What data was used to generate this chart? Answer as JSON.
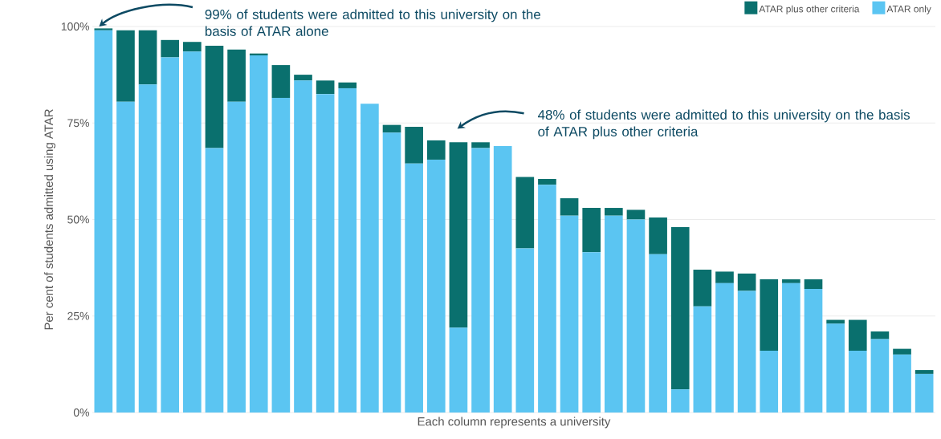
{
  "chart_data": {
    "type": "bar",
    "stacked": true,
    "ylabel": "Per cent of students admitted using ATAR",
    "xlabel": "Each column represents a university",
    "categories": [
      null,
      null,
      null,
      null,
      null,
      null,
      null,
      null,
      null,
      null,
      null,
      null,
      null,
      null,
      null,
      null,
      null,
      null,
      null,
      null,
      null,
      null,
      null,
      null,
      null,
      null,
      null,
      null,
      null,
      null,
      null,
      null,
      null,
      null,
      null,
      null,
      null,
      null
    ],
    "series": [
      {
        "name": "ATAR only",
        "color": "#5bc5f2",
        "values": [
          99,
          80.5,
          85,
          92,
          93.5,
          68.5,
          80.5,
          92.5,
          81.5,
          86,
          82.5,
          84,
          80,
          72.5,
          64.5,
          65.5,
          22,
          68.5,
          69,
          42.5,
          59,
          51,
          41.5,
          51,
          50,
          41,
          6,
          27.5,
          33.5,
          31.5,
          16,
          33.5,
          32,
          23,
          16,
          19,
          15,
          10
        ]
      },
      {
        "name": "ATAR plus other criteria",
        "color": "#0a706e",
        "values": [
          0.5,
          18.5,
          14,
          4.5,
          2.5,
          26.5,
          13.5,
          0.5,
          8.5,
          1.5,
          3.5,
          1.5,
          0,
          2,
          9.5,
          5,
          48,
          1.5,
          0,
          18.5,
          1.5,
          4.5,
          11.5,
          2,
          2.5,
          9.5,
          42,
          9.5,
          3,
          4.5,
          18.5,
          1,
          2.5,
          1,
          8,
          2,
          1.5,
          1
        ]
      }
    ],
    "ylim": [
      0,
      100
    ],
    "yticks": [
      {
        "value": 0,
        "label": "0%"
      },
      {
        "value": 25,
        "label": "25%"
      },
      {
        "value": 50,
        "label": "50%"
      },
      {
        "value": 75,
        "label": "75%"
      },
      {
        "value": 100,
        "label": "100%"
      }
    ],
    "grid": "y",
    "legend": "top right",
    "annotations": [
      "99% of students were admitted to this university on the basis of ATAR alone",
      "48% of students were admitted to this university on the basis of ATAR plus other criteria"
    ]
  }
}
